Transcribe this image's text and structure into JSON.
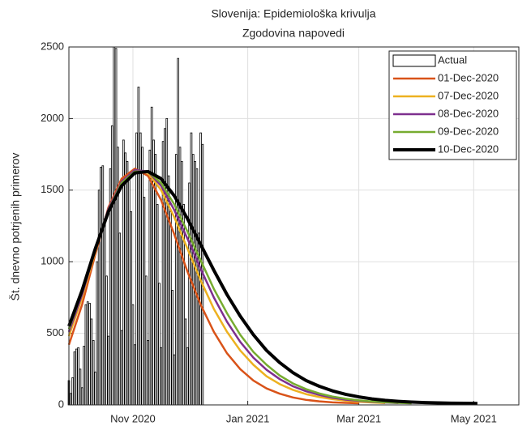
{
  "chart_data": {
    "type": "bar-line",
    "title": [
      "Slovenija: Epidemiološka krivulja",
      "Zgodovina napovedi"
    ],
    "ylabel": "Št. dnevno potrjenih primerov",
    "xlim": [
      "2020-09-28",
      "2021-05-25"
    ],
    "xticks": [
      {
        "value": "2020-11-01",
        "label": "Nov 2020"
      },
      {
        "value": "2021-01-01",
        "label": "Jan 2021"
      },
      {
        "value": "2021-03-01",
        "label": "Mar 2021"
      },
      {
        "value": "2021-05-01",
        "label": "May 2021"
      }
    ],
    "ylim": [
      0,
      2500
    ],
    "yticks": [
      0,
      500,
      1000,
      1500,
      2000,
      2500
    ],
    "grid": true,
    "legend": "northeast",
    "bar_series": {
      "name": "Actual",
      "color": "#ffffff",
      "start": "2020-09-28",
      "values": [
        170,
        80,
        190,
        370,
        390,
        400,
        250,
        120,
        410,
        700,
        720,
        710,
        600,
        450,
        230,
        1000,
        1500,
        1660,
        1670,
        1300,
        900,
        480,
        1650,
        1950,
        2500,
        2490,
        1800,
        1200,
        520,
        1850,
        1760,
        1700,
        1600,
        1350,
        700,
        420,
        1900,
        2220,
        1900,
        1800,
        1450,
        900,
        450,
        1780,
        2080,
        1850,
        1750,
        1400,
        850,
        400,
        1840,
        1930,
        2000,
        1600,
        1350,
        800,
        350,
        1750,
        2420,
        1800,
        1700,
        1400,
        600,
        400,
        1550,
        1900,
        1750,
        1700,
        1650,
        1200,
        1900,
        1820
      ]
    },
    "x": [
      "2020-09-28",
      "2020-10-05",
      "2020-10-12",
      "2020-10-19",
      "2020-10-26",
      "2020-11-02",
      "2020-11-09",
      "2020-11-16",
      "2020-11-23",
      "2020-11-30",
      "2020-12-07",
      "2020-12-14",
      "2020-12-21",
      "2020-12-28",
      "2021-01-04",
      "2021-01-11",
      "2021-01-18",
      "2021-01-25",
      "2021-02-01",
      "2021-02-08",
      "2021-02-15",
      "2021-02-22",
      "2021-03-01",
      "2021-03-08",
      "2021-03-15",
      "2021-03-22",
      "2021-03-29",
      "2021-04-05",
      "2021-04-12",
      "2021-04-19",
      "2021-04-26",
      "2021-05-03"
    ],
    "series": [
      {
        "name": "01-Dec-2020",
        "color": "#d95319",
        "width": 2.5,
        "values": [
          420,
          700,
          1050,
          1380,
          1580,
          1650,
          1600,
          1430,
          1190,
          930,
          700,
          510,
          360,
          250,
          170,
          115,
          78,
          52,
          35,
          25,
          18,
          14,
          11,
          null,
          null,
          null,
          null,
          null,
          null,
          null,
          null,
          null
        ]
      },
      {
        "name": "07-Dec-2020",
        "color": "#edb120",
        "width": 2.5,
        "values": [
          480,
          750,
          1070,
          1370,
          1560,
          1640,
          1620,
          1500,
          1310,
          1090,
          870,
          670,
          510,
          380,
          280,
          200,
          145,
          105,
          75,
          55,
          40,
          30,
          22,
          17,
          13,
          null,
          null,
          null,
          null,
          null,
          null,
          null
        ]
      },
      {
        "name": "08-Dec-2020",
        "color": "#7e2f8e",
        "width": 2.5,
        "values": [
          510,
          770,
          1080,
          1370,
          1560,
          1640,
          1630,
          1530,
          1360,
          1160,
          950,
          750,
          580,
          440,
          330,
          245,
          180,
          130,
          95,
          70,
          50,
          37,
          28,
          21,
          16,
          13,
          null,
          null,
          null,
          null,
          null,
          null
        ]
      },
      {
        "name": "09-Dec-2020",
        "color": "#77ac30",
        "width": 2.5,
        "values": [
          530,
          790,
          1090,
          1360,
          1550,
          1630,
          1630,
          1550,
          1400,
          1210,
          1010,
          810,
          640,
          490,
          370,
          280,
          205,
          150,
          110,
          80,
          58,
          43,
          32,
          24,
          18,
          14,
          11,
          null,
          null,
          null,
          null,
          null
        ]
      },
      {
        "name": "10-Dec-2020",
        "color": "#000000",
        "width": 4,
        "values": [
          550,
          800,
          1090,
          1350,
          1530,
          1620,
          1630,
          1580,
          1460,
          1300,
          1120,
          940,
          770,
          620,
          490,
          380,
          295,
          225,
          170,
          130,
          98,
          74,
          56,
          42,
          32,
          25,
          20,
          16,
          14,
          12,
          11,
          10
        ]
      }
    ]
  }
}
